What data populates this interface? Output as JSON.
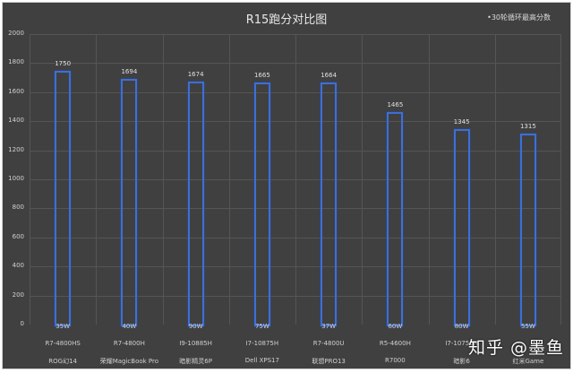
{
  "chart_data": {
    "type": "bar",
    "title": "R15跑分对比图",
    "subtitle": "•30轮循环最高分数",
    "xlabel": "",
    "ylabel": "",
    "ylim": [
      0,
      2000
    ],
    "yticks": [
      0,
      200,
      400,
      600,
      800,
      1000,
      1200,
      1400,
      1600,
      1800,
      2000
    ],
    "grid": true,
    "legend": null,
    "categories": [
      {
        "power": "35W",
        "cpu": "R7-4800HS",
        "model": "ROG幻14"
      },
      {
        "power": "40W",
        "cpu": "R7-4800H",
        "model": "荣耀MagicBook Pro"
      },
      {
        "power": "90W",
        "cpu": "I9-10885H",
        "model": "暗影精灵6P"
      },
      {
        "power": "75W",
        "cpu": "I7-10875H",
        "model": "Dell XPS17"
      },
      {
        "power": "37W",
        "cpu": "R7-4800U",
        "model": "联想PRO13"
      },
      {
        "power": "60W",
        "cpu": "R5-4600H",
        "model": "R7000"
      },
      {
        "power": "80W",
        "cpu": "I7-10750H",
        "model": "暗影6"
      },
      {
        "power": "55W",
        "cpu": "",
        "model": "红米Game"
      }
    ],
    "values": [
      1750,
      1694,
      1674,
      1665,
      1664,
      1465,
      1345,
      1315
    ],
    "bar_color": "#3d6fd6",
    "background": "#404040"
  },
  "watermark": "知乎 @墨鱼",
  "ytick_labels": [
    "0",
    "200",
    "400",
    "600",
    "800",
    "1000",
    "1200",
    "1400",
    "1600",
    "1800",
    "2000"
  ]
}
